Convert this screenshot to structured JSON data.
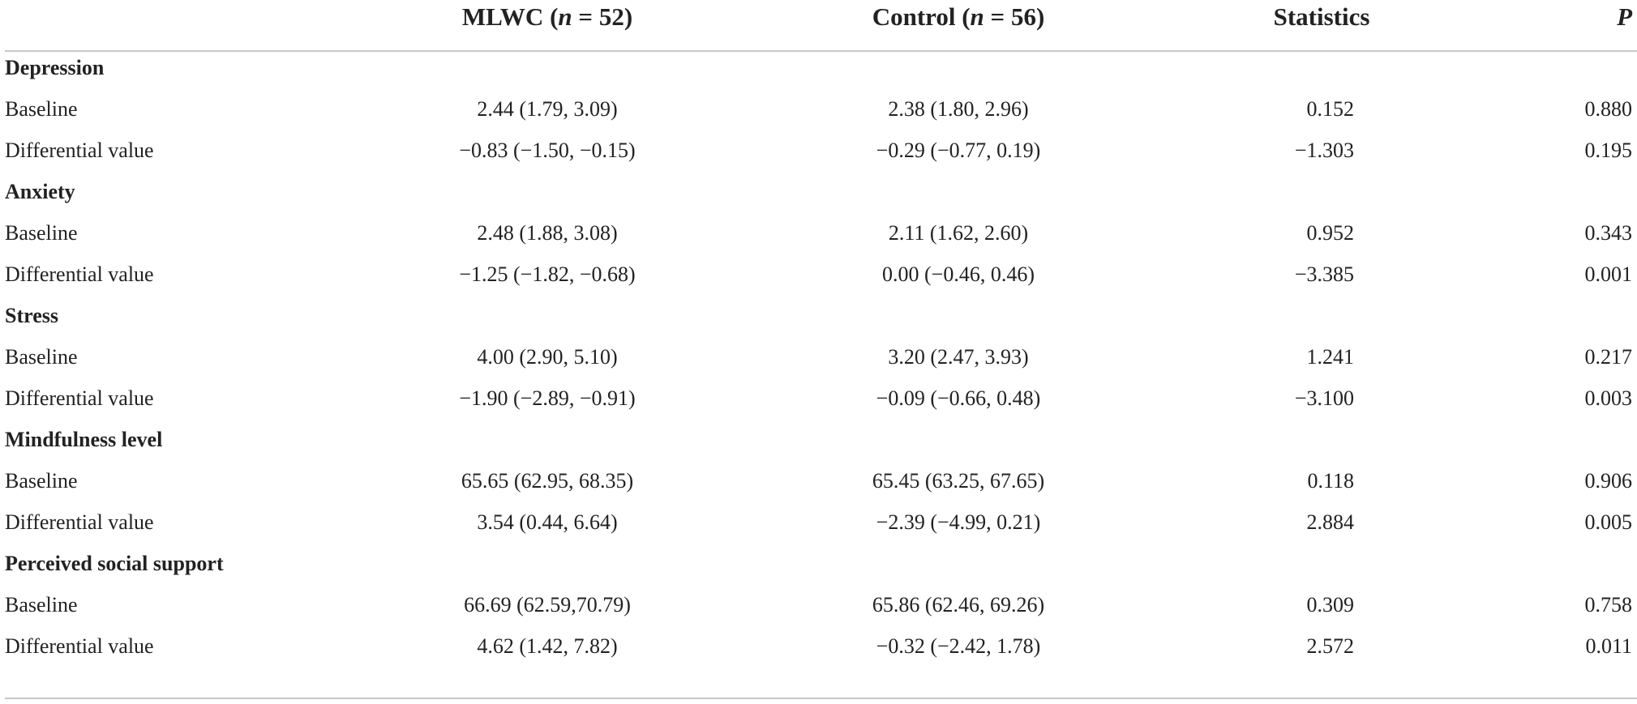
{
  "header": {
    "mlwc_prefix": "MLWC (",
    "mlwc_n_var": "n",
    "mlwc_n_value": " = 52)",
    "control_prefix": "Control (",
    "control_n_var": "n",
    "control_n_value": " = 56)",
    "statistics": "Statistics",
    "p": "P"
  },
  "sections": [
    {
      "title": "Depression",
      "rows": [
        {
          "label": "Baseline",
          "mlwc": "2.44 (1.79, 3.09)",
          "control": "2.38 (1.80, 2.96)",
          "statistics": "0.152",
          "p": "0.880"
        },
        {
          "label": "Differential value",
          "mlwc": "−0.83 (−1.50, −0.15)",
          "control": "−0.29 (−0.77, 0.19)",
          "statistics": "−1.303",
          "p": "0.195"
        }
      ]
    },
    {
      "title": "Anxiety",
      "rows": [
        {
          "label": "Baseline",
          "mlwc": "2.48 (1.88, 3.08)",
          "control": "2.11 (1.62, 2.60)",
          "statistics": "0.952",
          "p": "0.343"
        },
        {
          "label": "Differential value",
          "mlwc": "−1.25 (−1.82, −0.68)",
          "control": "0.00 (−0.46, 0.46)",
          "statistics": "−3.385",
          "p": "0.001"
        }
      ]
    },
    {
      "title": "Stress",
      "rows": [
        {
          "label": "Baseline",
          "mlwc": "4.00 (2.90, 5.10)",
          "control": "3.20 (2.47, 3.93)",
          "statistics": "1.241",
          "p": "0.217"
        },
        {
          "label": "Differential value",
          "mlwc": "−1.90 (−2.89, −0.91)",
          "control": "−0.09 (−0.66, 0.48)",
          "statistics": "−3.100",
          "p": "0.003"
        }
      ]
    },
    {
      "title": "Mindfulness level",
      "rows": [
        {
          "label": "Baseline",
          "mlwc": "65.65 (62.95, 68.35)",
          "control": "65.45 (63.25, 67.65)",
          "statistics": "0.118",
          "p": "0.906"
        },
        {
          "label": "Differential value",
          "mlwc": "3.54 (0.44, 6.64)",
          "control": "−2.39 (−4.99, 0.21)",
          "statistics": "2.884",
          "p": "0.005"
        }
      ]
    },
    {
      "title": "Perceived social support",
      "rows": [
        {
          "label": "Baseline",
          "mlwc": "66.69 (62.59,70.79)",
          "control": "65.86 (62.46, 69.26)",
          "statistics": "0.309",
          "p": "0.758"
        },
        {
          "label": "Differential value",
          "mlwc": "4.62 (1.42, 7.82)",
          "control": "−0.32 (−2.42, 1.78)",
          "statistics": "2.572",
          "p": "0.011"
        }
      ]
    }
  ]
}
